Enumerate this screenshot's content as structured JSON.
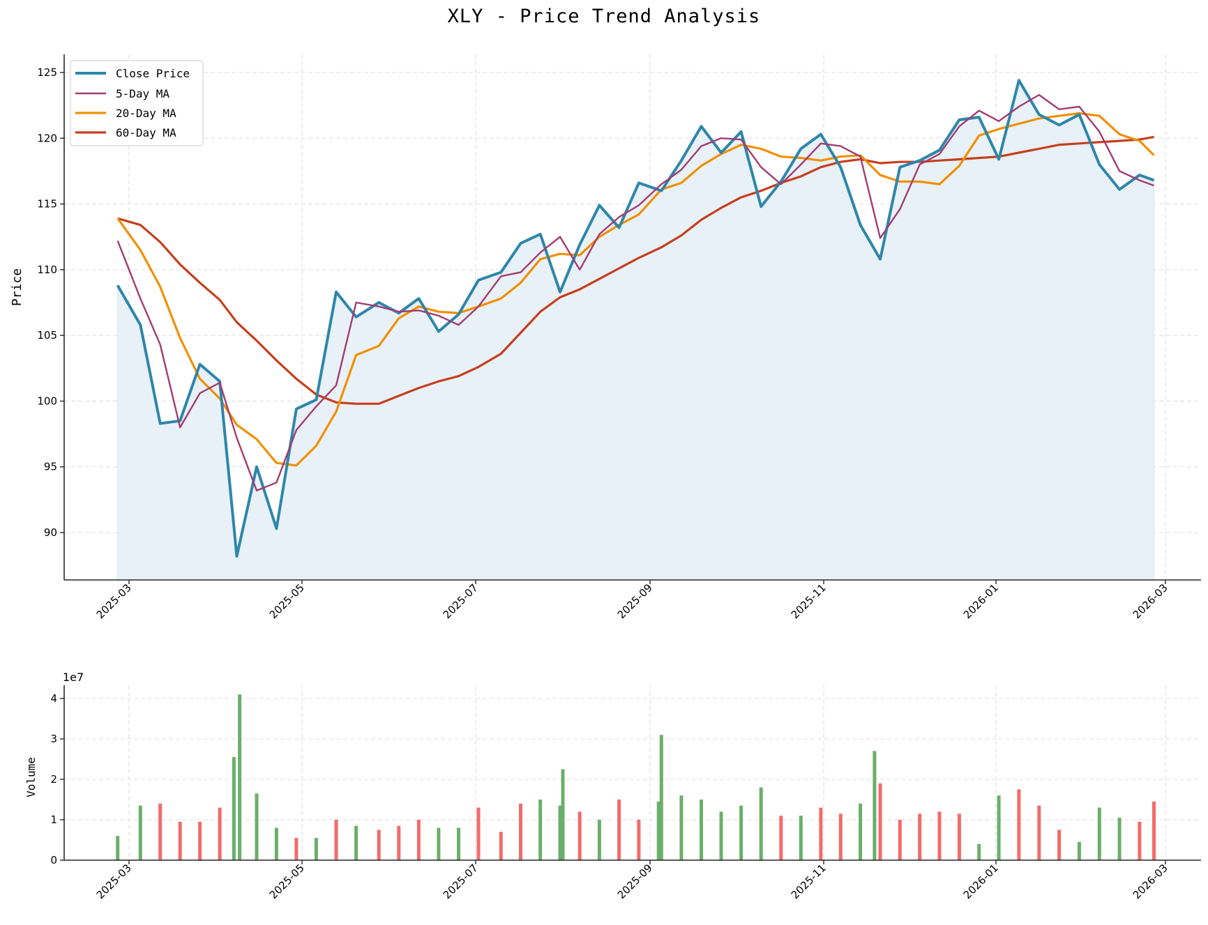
{
  "title": "XLY - Price Trend Analysis",
  "colors": {
    "close": "#2E86AB",
    "ma5": "#A23B72",
    "ma20": "#F18F01",
    "ma60": "#C73E1D",
    "fill": "#E8F1F7",
    "vol_up": "#6AAF6A",
    "vol_down": "#F26B6B",
    "grid": "#E3E3E3",
    "axis": "#262626"
  },
  "price_panel": {
    "ylabel": "Price",
    "yticks": [
      "90",
      "95",
      "100",
      "105",
      "110",
      "115",
      "120",
      "125"
    ],
    "legend": [
      {
        "key": "close",
        "label": "Close Price"
      },
      {
        "key": "ma5",
        "label": "5-Day MA"
      },
      {
        "key": "ma20",
        "label": "20-Day MA"
      },
      {
        "key": "ma60",
        "label": "60-Day MA"
      }
    ]
  },
  "volume_panel": {
    "ylabel": "Volume",
    "offset_label": "1e7",
    "yticks": [
      "0",
      "1",
      "2",
      "3",
      "4"
    ]
  },
  "xticks": [
    "2025-03",
    "2025-05",
    "2025-07",
    "2025-09",
    "2025-11",
    "2026-01",
    "2026-03"
  ],
  "chart_data": [
    {
      "type": "line",
      "title": "XLY - Price Trend Analysis",
      "xlabel": "",
      "ylabel": "Price",
      "ylim": [
        86.5,
        126.3
      ],
      "xlim": [
        "2025-02-12",
        "2026-03-15"
      ],
      "grid": true,
      "legend_position": "upper left",
      "x_tick_labels": [
        "2025-03",
        "2025-05",
        "2025-07",
        "2025-09",
        "2025-11",
        "2026-01",
        "2026-03"
      ],
      "y_tick_labels": [
        "90",
        "95",
        "100",
        "105",
        "110",
        "115",
        "120",
        "125"
      ],
      "x": [
        "2025-02-25",
        "2025-03-05",
        "2025-03-12",
        "2025-03-19",
        "2025-03-26",
        "2025-04-02",
        "2025-04-08",
        "2025-04-15",
        "2025-04-22",
        "2025-04-29",
        "2025-05-06",
        "2025-05-13",
        "2025-05-20",
        "2025-05-28",
        "2025-06-04",
        "2025-06-11",
        "2025-06-18",
        "2025-06-25",
        "2025-07-02",
        "2025-07-10",
        "2025-07-17",
        "2025-07-24",
        "2025-07-31",
        "2025-08-07",
        "2025-08-14",
        "2025-08-21",
        "2025-08-28",
        "2025-09-05",
        "2025-09-12",
        "2025-09-19",
        "2025-09-26",
        "2025-10-03",
        "2025-10-10",
        "2025-10-17",
        "2025-10-24",
        "2025-10-31",
        "2025-11-07",
        "2025-11-14",
        "2025-11-21",
        "2025-11-28",
        "2025-12-05",
        "2025-12-12",
        "2025-12-19",
        "2025-12-26",
        "2026-01-02",
        "2026-01-09",
        "2026-01-16",
        "2026-01-23",
        "2026-01-30",
        "2026-02-06",
        "2026-02-13",
        "2026-02-20",
        "2026-02-25"
      ],
      "series": [
        {
          "name": "Close Price",
          "values": [
            108.8,
            105.8,
            98.3,
            98.5,
            102.8,
            101.5,
            88.2,
            95.0,
            90.3,
            99.4,
            100.1,
            108.3,
            106.4,
            107.5,
            106.7,
            107.8,
            105.3,
            106.6,
            109.2,
            109.8,
            112.0,
            112.7,
            108.3,
            111.9,
            114.9,
            113.2,
            116.6,
            116.0,
            118.3,
            120.9,
            118.9,
            120.5,
            114.8,
            116.7,
            119.2,
            120.3,
            117.8,
            113.4,
            110.8,
            117.8,
            118.3,
            119.1,
            121.4,
            121.6,
            118.4,
            124.4,
            121.8,
            121.0,
            121.8,
            118.0,
            116.1,
            117.2,
            116.8
          ]
        },
        {
          "name": "5-Day MA",
          "values": [
            112.2,
            107.8,
            104.3,
            98.0,
            100.6,
            101.4,
            97.2,
            93.2,
            93.8,
            97.8,
            99.6,
            101.2,
            107.5,
            107.2,
            106.8,
            106.9,
            106.5,
            105.8,
            107.2,
            109.5,
            109.8,
            111.3,
            112.5,
            110.0,
            112.7,
            114.0,
            114.9,
            116.5,
            117.6,
            119.4,
            120.0,
            119.9,
            117.8,
            116.5,
            118.0,
            119.6,
            119.4,
            118.6,
            112.4,
            114.6,
            118.0,
            118.8,
            120.9,
            122.1,
            121.3,
            122.4,
            123.3,
            122.2,
            122.4,
            120.5,
            117.5,
            116.8,
            116.4
          ]
        },
        {
          "name": "20-Day MA",
          "values": [
            113.9,
            111.5,
            108.7,
            104.8,
            101.7,
            100.2,
            98.2,
            97.1,
            95.3,
            95.1,
            96.6,
            99.2,
            103.5,
            104.2,
            106.3,
            107.2,
            106.8,
            106.7,
            107.2,
            107.8,
            109.0,
            110.8,
            111.2,
            111.1,
            112.5,
            113.4,
            114.2,
            116.1,
            116.6,
            117.9,
            118.8,
            119.5,
            119.2,
            118.6,
            118.5,
            118.3,
            118.6,
            118.7,
            117.2,
            116.7,
            116.7,
            116.5,
            117.9,
            120.2,
            120.7,
            121.1,
            121.5,
            121.7,
            121.9,
            121.7,
            120.3,
            119.8,
            118.7
          ]
        },
        {
          "name": "60-Day MA",
          "values": [
            113.9,
            113.4,
            112.1,
            110.4,
            109.0,
            107.7,
            106.0,
            104.6,
            103.1,
            101.7,
            100.5,
            99.9,
            99.8,
            99.8,
            100.4,
            101.0,
            101.5,
            101.9,
            102.6,
            103.6,
            105.2,
            106.8,
            107.9,
            108.5,
            109.3,
            110.1,
            110.9,
            111.7,
            112.6,
            113.8,
            114.7,
            115.5,
            116.0,
            116.6,
            117.1,
            117.8,
            118.2,
            118.4,
            118.1,
            118.2,
            118.2,
            118.3,
            118.4,
            118.5,
            118.6,
            118.9,
            119.2,
            119.5,
            119.6,
            119.7,
            119.8,
            119.9,
            120.1
          ]
        }
      ]
    },
    {
      "type": "bar",
      "title": "",
      "xlabel": "",
      "ylabel": "Volume",
      "unit_multiplier": "1e7",
      "ylim": [
        0,
        4.35
      ],
      "grid": true,
      "y_tick_labels": [
        "0",
        "1",
        "2",
        "3",
        "4"
      ],
      "x_tick_labels": [
        "2025-03",
        "2025-05",
        "2025-07",
        "2025-09",
        "2025-11",
        "2026-01",
        "2026-03"
      ],
      "note": "values in units of 1e7; color green = up day, red = down day",
      "x": [
        "2025-02-25",
        "2025-03-05",
        "2025-03-12",
        "2025-03-19",
        "2025-03-26",
        "2025-04-02",
        "2025-04-07",
        "2025-04-09",
        "2025-04-15",
        "2025-04-22",
        "2025-04-29",
        "2025-05-06",
        "2025-05-13",
        "2025-05-20",
        "2025-05-28",
        "2025-06-04",
        "2025-06-11",
        "2025-06-18",
        "2025-06-25",
        "2025-07-02",
        "2025-07-10",
        "2025-07-17",
        "2025-07-24",
        "2025-07-31",
        "2025-08-01",
        "2025-08-07",
        "2025-08-14",
        "2025-08-21",
        "2025-08-28",
        "2025-09-04",
        "2025-09-05",
        "2025-09-12",
        "2025-09-19",
        "2025-09-26",
        "2025-10-03",
        "2025-10-10",
        "2025-10-17",
        "2025-10-24",
        "2025-10-31",
        "2025-11-07",
        "2025-11-14",
        "2025-11-19",
        "2025-11-21",
        "2025-11-28",
        "2025-12-05",
        "2025-12-12",
        "2025-12-19",
        "2025-12-26",
        "2026-01-02",
        "2026-01-09",
        "2026-01-16",
        "2026-01-23",
        "2026-01-30",
        "2026-02-06",
        "2026-02-13",
        "2026-02-20",
        "2026-02-25"
      ],
      "series": [
        {
          "name": "Volume",
          "values": [
            0.6,
            1.35,
            1.4,
            0.95,
            0.95,
            1.3,
            2.55,
            4.1,
            1.65,
            0.8,
            0.55,
            0.55,
            1.0,
            0.85,
            0.75,
            0.85,
            1.0,
            0.8,
            0.8,
            1.3,
            0.7,
            1.4,
            1.5,
            1.35,
            2.25,
            1.2,
            1.0,
            1.5,
            1.0,
            1.45,
            3.1,
            1.6,
            1.5,
            1.2,
            1.35,
            1.8,
            1.1,
            1.1,
            1.3,
            1.15,
            1.4,
            2.7,
            1.9,
            1.0,
            1.15,
            1.2,
            1.15,
            0.4,
            1.6,
            1.75,
            1.35,
            0.75,
            0.45,
            1.3,
            1.05,
            0.95,
            1.45
          ]
        },
        {
          "name": "Volume direction",
          "values": [
            "up",
            "up",
            "down",
            "down",
            "down",
            "down",
            "up",
            "up",
            "up",
            "up",
            "down",
            "up",
            "down",
            "up",
            "down",
            "down",
            "down",
            "up",
            "up",
            "down",
            "down",
            "down",
            "up",
            "up",
            "up",
            "down",
            "up",
            "down",
            "down",
            "up",
            "up",
            "up",
            "up",
            "up",
            "up",
            "up",
            "down",
            "up",
            "down",
            "down",
            "up",
            "up",
            "down",
            "down",
            "down",
            "down",
            "down",
            "up",
            "up",
            "down",
            "down",
            "down",
            "up",
            "up",
            "up",
            "down",
            "down"
          ]
        }
      ]
    }
  ]
}
